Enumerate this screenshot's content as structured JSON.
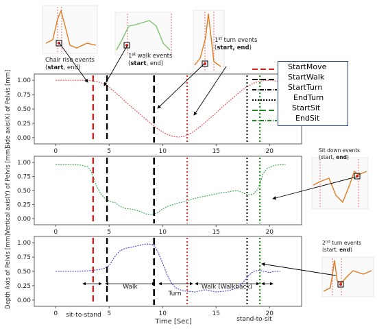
{
  "chart_data": {
    "type": "line",
    "xlabel": "Time [Sec]",
    "xlim": [
      -2,
      23
    ],
    "x_ticks": [
      0,
      5,
      10,
      15,
      20
    ],
    "event_times": {
      "StartMove": 3.5,
      "StartWalk": 4.8,
      "StartTurn": 9.2,
      "EndTurn": 12.3,
      "StartSit": 17.9,
      "EndSit": 19.1
    },
    "panels": [
      {
        "ylabel": "Side axis(X) of Pelvis [mm]",
        "ylim": [
          -0.05,
          1.05
        ],
        "y_ticks": [
          "0.00",
          "0.25",
          "0.50",
          "0.75",
          "1.00"
        ],
        "series_color": "#e84a4a",
        "x": [
          0,
          1,
          2,
          3,
          3.5,
          4,
          4.5,
          5,
          5.5,
          6,
          6.5,
          7,
          7.5,
          8,
          8.5,
          9,
          9.5,
          10,
          10.5,
          11,
          11.5,
          12,
          12.5,
          13,
          13.5,
          14,
          14.5,
          15,
          15.5,
          16,
          16.5,
          17,
          17.5,
          18,
          18.5,
          19,
          19.5,
          20,
          20.5,
          21,
          21.5
        ],
        "y": [
          1.0,
          1.0,
          1.0,
          1.0,
          0.99,
          0.97,
          0.94,
          0.88,
          0.8,
          0.72,
          0.63,
          0.55,
          0.47,
          0.39,
          0.31,
          0.23,
          0.16,
          0.1,
          0.05,
          0.02,
          0.01,
          0.02,
          0.06,
          0.12,
          0.19,
          0.27,
          0.35,
          0.43,
          0.52,
          0.6,
          0.68,
          0.76,
          0.84,
          0.9,
          0.95,
          0.98,
          1.0,
          1.0,
          0.99,
          0.97,
          0.97
        ]
      },
      {
        "ylabel": "Vertical axis(Y) of Pelvis [mm]",
        "ylim": [
          -0.05,
          1.05
        ],
        "y_ticks": [
          "0.00",
          "0.25",
          "0.50",
          "0.75",
          "1.00"
        ],
        "series_color": "#2ea84a",
        "x": [
          0,
          1,
          2,
          2.5,
          3,
          3.3,
          3.6,
          3.9,
          4.2,
          4.5,
          4.8,
          5.2,
          5.6,
          6,
          6.5,
          7,
          7.5,
          8,
          8.5,
          9,
          9.5,
          10,
          10.5,
          11,
          11.5,
          12,
          12.5,
          13,
          13.5,
          14,
          14.5,
          15,
          15.5,
          16,
          16.5,
          17,
          17.5,
          18,
          18.5,
          18.8,
          19.1,
          19.4,
          19.8,
          20.5,
          21,
          21.5
        ],
        "y": [
          0.96,
          0.96,
          0.96,
          0.95,
          0.92,
          0.85,
          0.7,
          0.55,
          0.45,
          0.38,
          0.33,
          0.3,
          0.28,
          0.22,
          0.18,
          0.17,
          0.15,
          0.12,
          0.08,
          0.07,
          0.1,
          0.17,
          0.22,
          0.25,
          0.28,
          0.3,
          0.33,
          0.36,
          0.38,
          0.4,
          0.42,
          0.44,
          0.46,
          0.47,
          0.49,
          0.5,
          0.46,
          0.42,
          0.44,
          0.5,
          0.62,
          0.8,
          0.9,
          0.95,
          0.96,
          0.96
        ]
      },
      {
        "ylabel": "Depth Axis of Pelvis [mm]",
        "ylim": [
          -0.05,
          1.05
        ],
        "y_ticks": [
          "0.00",
          "0.25",
          "0.50",
          "0.75",
          "1.00"
        ],
        "series_color": "#3a3ae0",
        "x": [
          0,
          1,
          2,
          3,
          3.5,
          4,
          4.5,
          5,
          5.5,
          6,
          6.5,
          7,
          7.5,
          8,
          8.5,
          9,
          9.3,
          9.6,
          10,
          10.4,
          10.8,
          11.2,
          11.6,
          12,
          12.5,
          13,
          13.5,
          14,
          14.5,
          15,
          15.5,
          16,
          16.5,
          17,
          17.5,
          18,
          18.5,
          19,
          19.5,
          20,
          20.5,
          21
        ],
        "y": [
          0.5,
          0.5,
          0.5,
          0.51,
          0.52,
          0.53,
          0.55,
          0.6,
          0.75,
          0.86,
          0.9,
          0.92,
          0.94,
          0.96,
          0.98,
          0.97,
          0.93,
          0.82,
          0.65,
          0.45,
          0.3,
          0.22,
          0.18,
          0.16,
          0.15,
          0.14,
          0.16,
          0.18,
          0.16,
          0.14,
          0.15,
          0.16,
          0.18,
          0.22,
          0.3,
          0.42,
          0.5,
          0.52,
          0.5,
          0.48,
          0.5,
          0.5
        ]
      }
    ],
    "legend": {
      "placement": "top-right",
      "entries": [
        {
          "label": "StartMove",
          "color": "#e02020",
          "style": "dashed"
        },
        {
          "label": "StartWalk",
          "color": "#000000",
          "style": "dashed"
        },
        {
          "label": "StartTurn",
          "color": "#000000",
          "style": "dashdot"
        },
        {
          "label": "EndTurn",
          "color": "#000000",
          "style": "dotted"
        },
        {
          "label": "StartSit",
          "color": "#1a8a1a",
          "style": "dashed"
        },
        {
          "label": "EndSit",
          "color": "#1a8a1a",
          "style": "dashdot"
        }
      ]
    },
    "annotations": {
      "chair_rise_line1": "Chair rise events",
      "chair_rise_start": "start",
      "chair_rise_end": ", end)",
      "walk1_sup": "st",
      "walk1_rest": " walk events",
      "walk1_start": "start",
      "walk1_end": ", end)",
      "turn1_sup": "st",
      "turn1_rest": " turn events",
      "turn1_start": "start",
      "turn1_end": "end",
      "sitdown_line1": "Sit down events",
      "sitdown_start": "(start, ",
      "sitdown_end": "end",
      "turn2_sup": "nd",
      "turn2_rest": " turn events",
      "turn2_line2": "(start, ",
      "turn2_end": "end",
      "phase_walk": "Walk",
      "phase_turn": "Turn",
      "phase_walkback": "Walk (Walkback)",
      "phase_sit_to_stand": "sit-to-stand",
      "phase_stand_to_sit": "stand-to-sit"
    }
  }
}
